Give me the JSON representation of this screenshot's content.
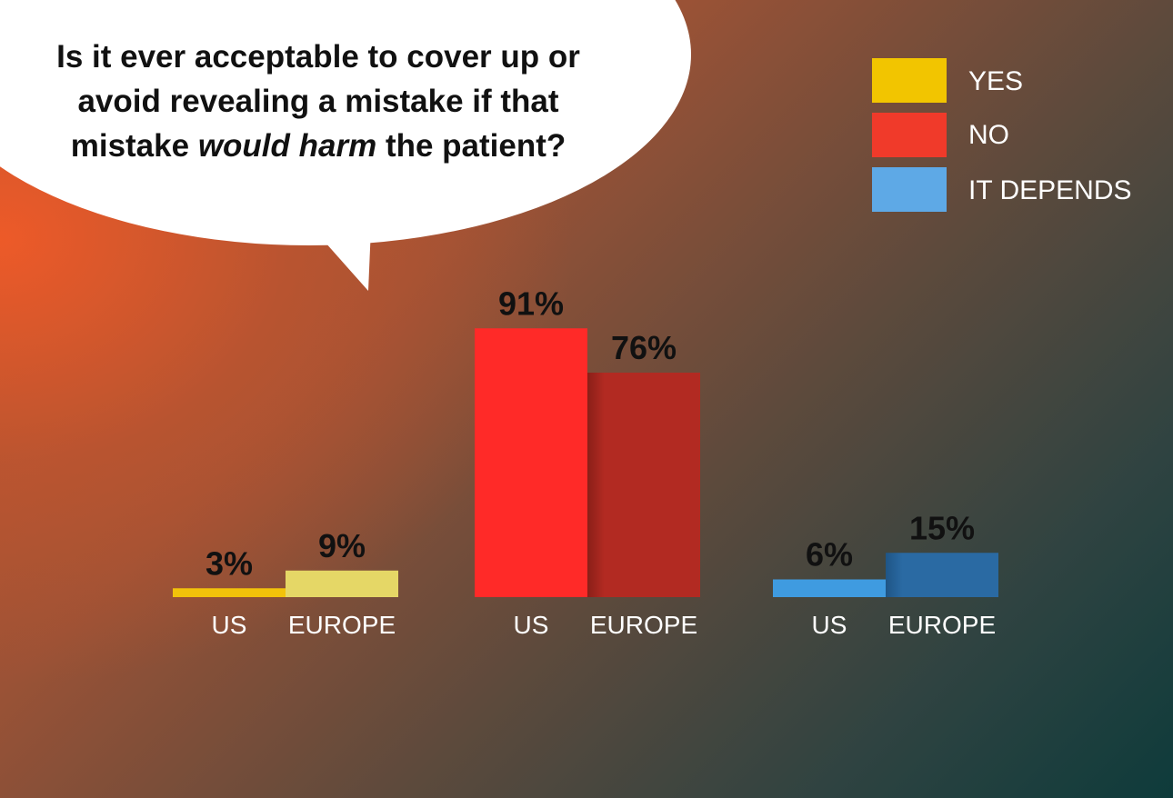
{
  "question": {
    "part1": "Is it ever acceptable to cover up or avoid revealing a mistake if that mistake ",
    "emphasis": "would harm",
    "part2": " the patient?"
  },
  "legend": [
    {
      "label": "YES",
      "color": "#f2c500"
    },
    {
      "label": "NO",
      "color": "#f03a2a"
    },
    {
      "label": "IT DEPENDS",
      "color": "#5ea9e6"
    }
  ],
  "chart_data": {
    "type": "bar",
    "categories": [
      "YES",
      "NO",
      "IT DEPENDS"
    ],
    "groups": [
      "US",
      "EUROPE"
    ],
    "value_suffix": "%",
    "series": [
      {
        "name": "US",
        "values": [
          3,
          91,
          6
        ]
      },
      {
        "name": "EUROPE",
        "values": [
          9,
          76,
          15
        ]
      }
    ],
    "colors": {
      "YES": {
        "US": "#f2c20a",
        "EUROPE": "#e5d766"
      },
      "NO": {
        "US": "#ff2a28",
        "EUROPE": "#b22a22"
      },
      "IT DEPENDS": {
        "US": "#3f9be0",
        "EUROPE": "#2a6aa3"
      }
    },
    "ylim": [
      0,
      100
    ],
    "title": "",
    "xlabel": "",
    "ylabel": ""
  }
}
